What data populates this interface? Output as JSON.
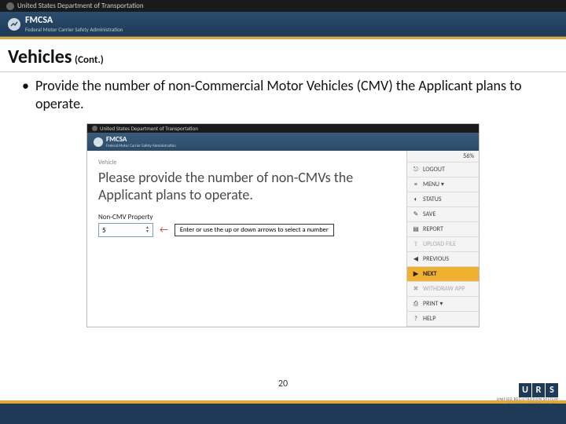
{
  "header": {
    "gov_text": "United States Department of Transportation",
    "fmcsa_name": "FMCSA",
    "fmcsa_sub": "Federal Motor Carrier Safety Administration"
  },
  "title": {
    "main": "Vehicles",
    "cont": "(Cont.)"
  },
  "bullet": "Provide the number of non-Commercial Motor Vehicles (CMV) the Applicant plans to operate.",
  "screenshot": {
    "gov_text": "United States Department of Transportation",
    "fmcsa_name": "FMCSA",
    "fmcsa_sub": "Federal Motor Carrier Safety Administration",
    "breadcrumb": "Vehicle",
    "heading": "Please provide the number of non-CMVs the Applicant plans to operate.",
    "field_label": "Non-CMV Property",
    "field_value": "5",
    "callout": "Enter or use the up or down arrows to select a number",
    "sidebar": {
      "progress": "56%",
      "items": [
        {
          "icon": "⎋",
          "label": "LOGOUT",
          "disabled": false
        },
        {
          "icon": "≡",
          "label": "MENU ▾",
          "disabled": false
        },
        {
          "icon": "◐",
          "label": "STATUS",
          "disabled": false
        },
        {
          "icon": "✎",
          "label": "SAVE",
          "disabled": false
        },
        {
          "icon": "▤",
          "label": "REPORT",
          "disabled": false
        },
        {
          "icon": "⇪",
          "label": "UPLOAD FILE",
          "disabled": true
        },
        {
          "icon": "◀",
          "label": "PREVIOUS",
          "disabled": false
        },
        {
          "icon": "▶",
          "label": "NEXT",
          "disabled": false,
          "next": true
        },
        {
          "icon": "✖",
          "label": "WITHDRAW APP",
          "disabled": true
        },
        {
          "icon": "⎙",
          "label": "PRINT ▾",
          "disabled": false
        },
        {
          "icon": "?",
          "label": "HELP",
          "disabled": false
        }
      ]
    }
  },
  "footer": {
    "page_number": "20",
    "urs_letters": [
      "U",
      "R",
      "S"
    ],
    "urs_line1": "UNIFIED REGISTRATION SYSTEM",
    "urs_line2": "Simplifying USDOT Registration"
  },
  "colors": {
    "accent": "#e8a830",
    "header_blue": "#1e3a56",
    "next_bg": "#f0b030"
  }
}
